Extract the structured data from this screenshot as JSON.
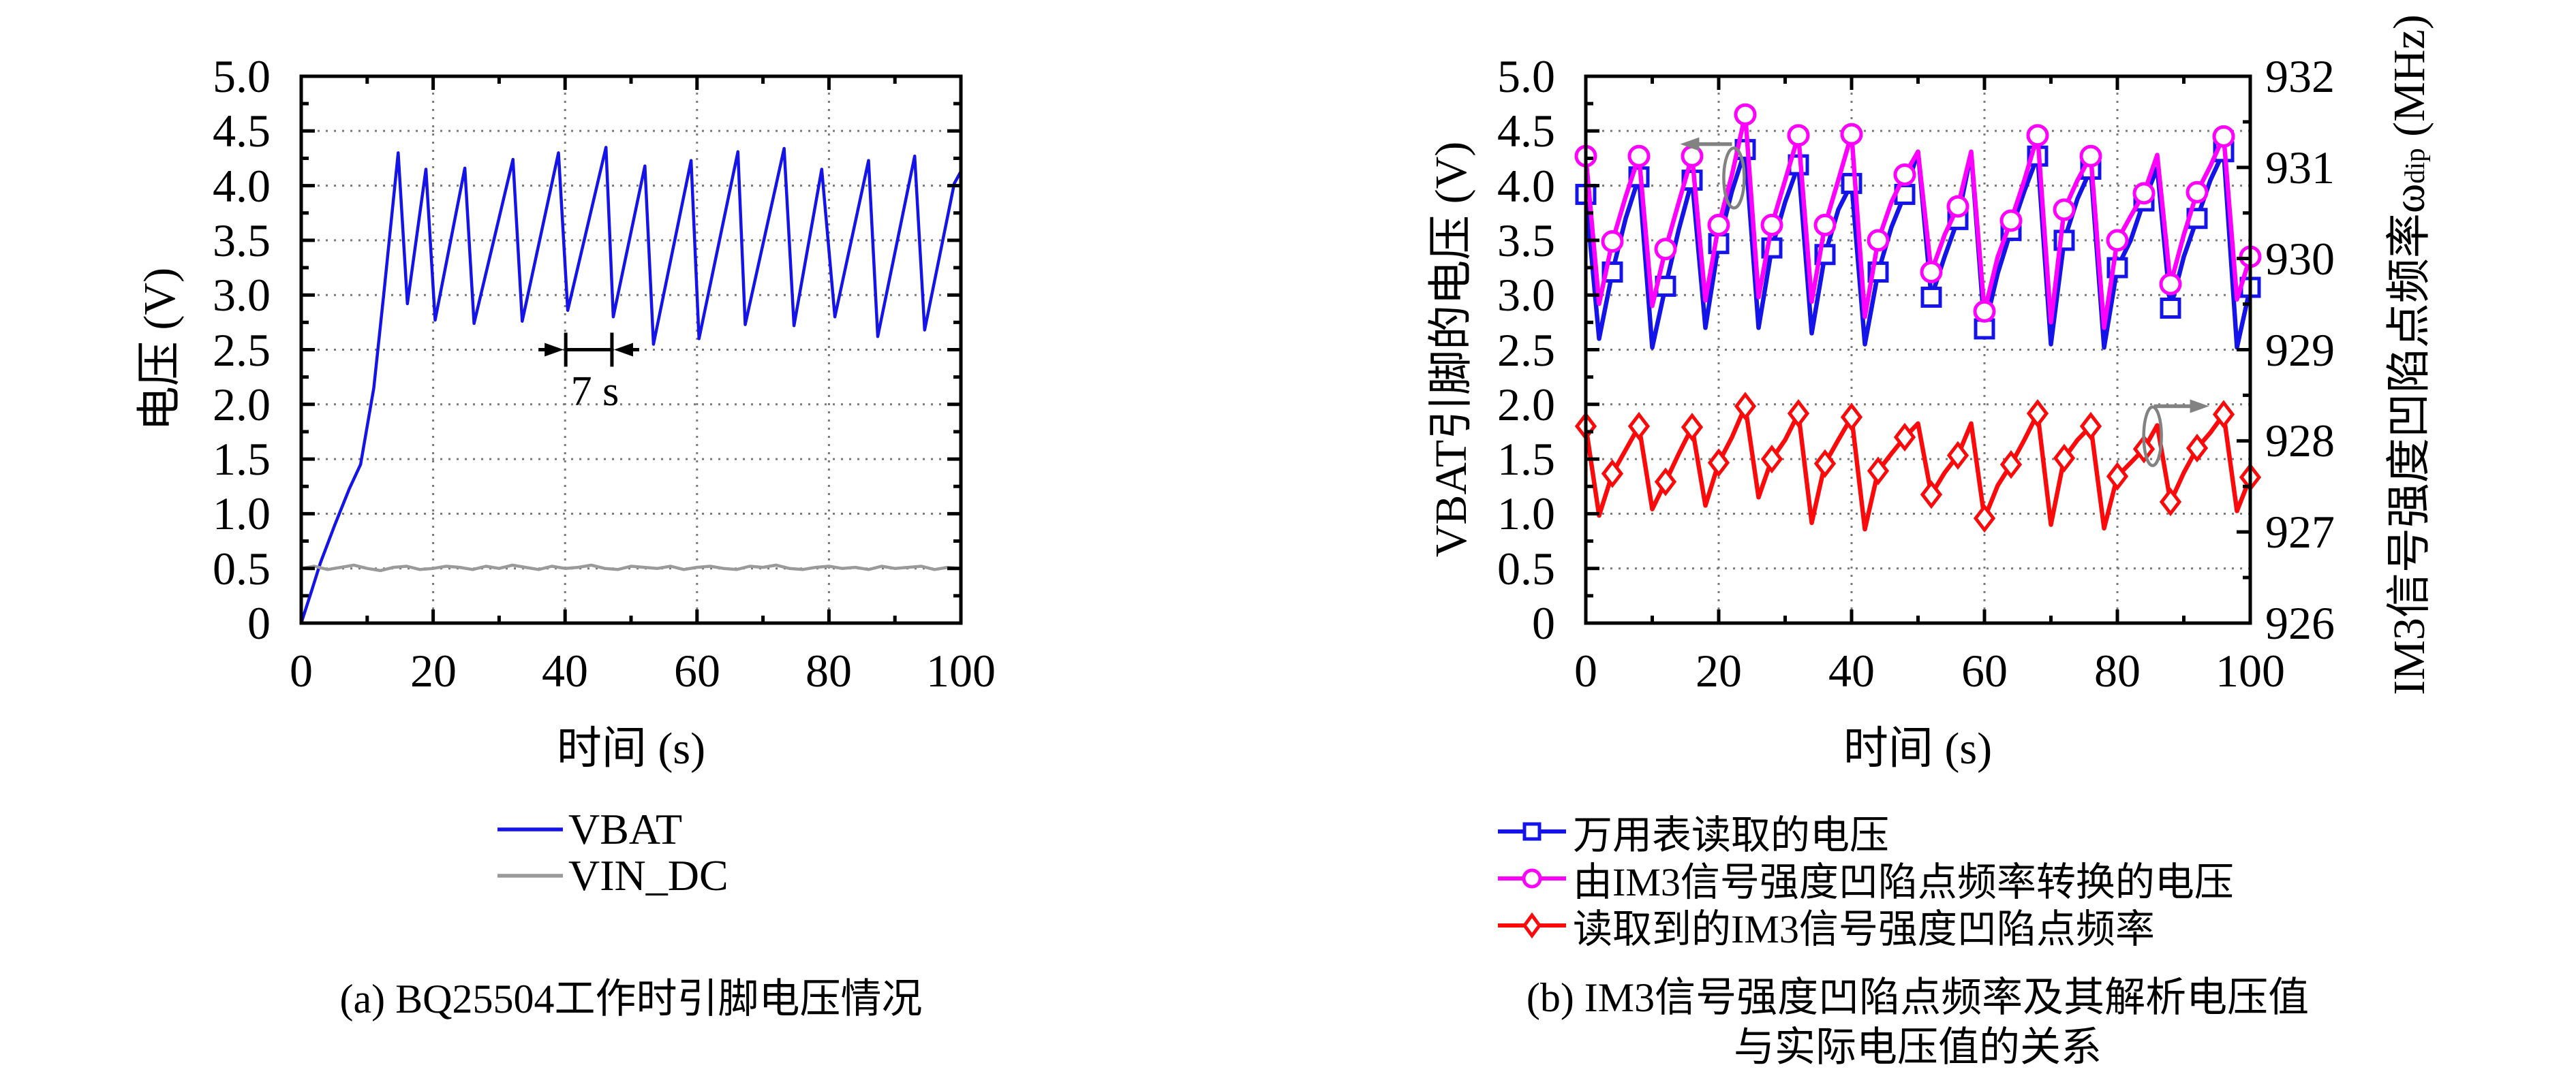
{
  "figure": {
    "background": "#ffffff"
  },
  "chart_data": [
    {
      "type": "line",
      "panel": "a",
      "caption": "(a) BQ25504工作时引脚电压情况",
      "xlabel": "时间 (s)",
      "ylabel": "电压 (V)",
      "xlim": [
        0,
        100
      ],
      "ylim": [
        0,
        5
      ],
      "x_major_step": 20,
      "x_minor_step": 10,
      "y_major_step": 0.5,
      "y_minor_step": 0.25,
      "grid": "dotted",
      "grid_color": "#7a7a7a",
      "legend_position": "below-center",
      "x_tick_labels": [
        "0",
        "20",
        "40",
        "60",
        "80",
        "100"
      ],
      "y_tick_labels": [
        "5.0",
        "4.5",
        "4.0",
        "3.5",
        "3.0",
        "2.5",
        "2.0",
        "1.5",
        "1.0",
        "0.5",
        "0"
      ],
      "series": [
        {
          "name": "VBAT",
          "color": "#1414E8",
          "width": 4.5,
          "marker": "none",
          "points": [
            [
              0,
              0
            ],
            [
              1.6,
              0.3
            ],
            [
              2.9,
              0.55
            ],
            [
              5.1,
              0.9
            ],
            [
              7.3,
              1.23
            ],
            [
              9,
              1.45
            ],
            [
              11,
              2.15
            ],
            [
              12.5,
              3.0
            ],
            [
              14.7,
              4.3
            ],
            [
              16.1,
              2.92
            ],
            [
              18.9,
              4.15
            ],
            [
              20.3,
              2.77
            ],
            [
              24.8,
              4.16
            ],
            [
              26.2,
              2.74
            ],
            [
              32.1,
              4.24
            ],
            [
              33.5,
              2.76
            ],
            [
              39,
              4.3
            ],
            [
              40.4,
              2.86
            ],
            [
              46.2,
              4.35
            ],
            [
              47.3,
              2.8
            ],
            [
              52.1,
              4.18
            ],
            [
              53.4,
              2.55
            ],
            [
              59.1,
              4.23
            ],
            [
              60.3,
              2.6
            ],
            [
              66.2,
              4.31
            ],
            [
              67.3,
              2.73
            ],
            [
              73.2,
              4.34
            ],
            [
              74.7,
              2.72
            ],
            [
              78.9,
              4.15
            ],
            [
              80.9,
              2.8
            ],
            [
              86,
              4.23
            ],
            [
              87.4,
              2.62
            ],
            [
              93,
              4.27
            ],
            [
              94.5,
              2.68
            ],
            [
              99,
              4.02
            ],
            [
              100,
              4.13
            ]
          ]
        },
        {
          "name": "VIN_DC",
          "color": "#9A9A9A",
          "width": 4.5,
          "marker": "none",
          "points": [
            [
              0,
              0.5
            ],
            [
              2,
              0.52
            ],
            [
              4,
              0.49
            ],
            [
              6,
              0.51
            ],
            [
              8,
              0.53
            ],
            [
              10,
              0.5
            ],
            [
              12,
              0.48
            ],
            [
              14,
              0.51
            ],
            [
              16,
              0.52
            ],
            [
              18,
              0.49
            ],
            [
              20,
              0.5
            ],
            [
              22,
              0.52
            ],
            [
              24,
              0.51
            ],
            [
              26,
              0.49
            ],
            [
              28,
              0.52
            ],
            [
              30,
              0.5
            ],
            [
              32,
              0.53
            ],
            [
              34,
              0.51
            ],
            [
              36,
              0.49
            ],
            [
              38,
              0.52
            ],
            [
              40,
              0.5
            ],
            [
              42,
              0.51
            ],
            [
              44,
              0.53
            ],
            [
              46,
              0.5
            ],
            [
              48,
              0.49
            ],
            [
              50,
              0.52
            ],
            [
              52,
              0.51
            ],
            [
              54,
              0.5
            ],
            [
              56,
              0.52
            ],
            [
              58,
              0.49
            ],
            [
              60,
              0.51
            ],
            [
              62,
              0.52
            ],
            [
              64,
              0.5
            ],
            [
              66,
              0.49
            ],
            [
              68,
              0.52
            ],
            [
              70,
              0.51
            ],
            [
              72,
              0.53
            ],
            [
              74,
              0.5
            ],
            [
              76,
              0.49
            ],
            [
              78,
              0.51
            ],
            [
              80,
              0.52
            ],
            [
              82,
              0.5
            ],
            [
              84,
              0.51
            ],
            [
              86,
              0.49
            ],
            [
              88,
              0.52
            ],
            [
              90,
              0.5
            ],
            [
              92,
              0.51
            ],
            [
              94,
              0.52
            ],
            [
              96,
              0.49
            ],
            [
              98,
              0.51
            ],
            [
              100,
              0.5
            ]
          ]
        }
      ],
      "annotation": {
        "label": "7 s",
        "span_t": [
          40.1,
          47.1
        ],
        "v": 2.5,
        "label_t": 44.3,
        "label_v": 2.13,
        "color": "#000000"
      }
    },
    {
      "type": "line",
      "panel": "b",
      "caption_line1": "(b) IM3信号强度凹陷点频率及其解析电压值",
      "caption_line2": "与实际电压值的关系",
      "xlabel": "时间 (s)",
      "ylabel_left": "VBAT引脚的电压 (V)",
      "ylabel_right": {
        "pre": "IM3信号强度凹陷点频率ω",
        "sub": "dip",
        "post": " (MHz)"
      },
      "xlim": [
        0,
        100
      ],
      "ylim_left": [
        0,
        5
      ],
      "ylim_right": [
        926,
        932
      ],
      "x_major_step": 20,
      "x_minor_step": 10,
      "y_left_major_step": 0.5,
      "y_left_minor_step": 0.25,
      "y_right_major_step": 1,
      "y_right_minor_step": 0.5,
      "grid": "dotted",
      "grid_color": "#7a7a7a",
      "legend_position": "below-left",
      "x_tick_labels": [
        "0",
        "20",
        "40",
        "60",
        "80",
        "100"
      ],
      "y_tick_labels_left": [
        "5.0",
        "4.5",
        "4.0",
        "3.5",
        "3.0",
        "2.5",
        "2.0",
        "1.5",
        "1.0",
        "0.5",
        "0"
      ],
      "y_tick_labels_right": [
        "932",
        "931",
        "930",
        "929",
        "928",
        "927",
        "926"
      ],
      "marker_every": 2,
      "x": [
        0,
        2,
        4,
        6,
        8,
        10,
        12,
        14,
        16,
        18,
        20,
        22,
        24,
        26,
        28,
        30,
        32,
        34,
        36,
        38,
        40,
        42,
        44,
        46,
        48,
        50,
        52,
        54,
        56,
        58,
        60,
        62,
        64,
        66,
        68,
        70,
        72,
        74,
        76,
        78,
        80,
        82,
        84,
        86,
        88,
        90,
        92,
        94,
        96,
        98,
        100
      ],
      "series": [
        {
          "name": "万用表读取的电压",
          "axis": "left",
          "color": "#1414E8",
          "width": 6.5,
          "marker": "square",
          "values": [
            3.92,
            2.6,
            3.21,
            3.7,
            4.08,
            2.52,
            3.08,
            3.6,
            4.05,
            2.7,
            3.47,
            3.95,
            4.33,
            2.7,
            3.43,
            3.85,
            4.19,
            2.65,
            3.37,
            3.78,
            4.02,
            2.55,
            3.21,
            3.62,
            3.92,
            4.31,
            2.98,
            3.35,
            3.69,
            4.3,
            2.69,
            3.2,
            3.59,
            3.95,
            4.27,
            2.55,
            3.5,
            3.88,
            4.15,
            2.52,
            3.25,
            3.5,
            3.86,
            4.16,
            2.88,
            3.35,
            3.7,
            4.05,
            4.31,
            2.52,
            3.07
          ]
        },
        {
          "name": "由IM3信号强度凹陷点频率转换的电压",
          "axis": "left",
          "color": "#FF00FF",
          "width": 6.5,
          "marker": "circle",
          "values": [
            4.27,
            2.92,
            3.49,
            3.9,
            4.27,
            2.9,
            3.42,
            3.85,
            4.27,
            2.95,
            3.64,
            4.1,
            4.65,
            2.98,
            3.64,
            4.05,
            4.46,
            2.94,
            3.64,
            4.05,
            4.47,
            2.8,
            3.5,
            3.85,
            4.1,
            4.31,
            3.21,
            3.55,
            3.81,
            4.31,
            2.85,
            3.35,
            3.68,
            4.05,
            4.46,
            2.75,
            3.78,
            4.05,
            4.27,
            2.7,
            3.5,
            3.72,
            3.93,
            4.28,
            3.1,
            3.55,
            3.94,
            4.18,
            4.45,
            2.96,
            3.35
          ]
        },
        {
          "name": "读取到的IM3信号强度凹陷点频率",
          "axis": "right",
          "color": "#FA0A0A",
          "width": 6.5,
          "marker": "diamond",
          "values": [
            928.16,
            927.18,
            927.64,
            927.9,
            928.16,
            927.25,
            927.55,
            927.86,
            928.15,
            927.29,
            927.76,
            928.04,
            928.38,
            927.38,
            927.8,
            928.01,
            928.3,
            927.1,
            927.75,
            928.01,
            928.26,
            927.03,
            927.67,
            927.86,
            928.04,
            928.19,
            927.41,
            927.65,
            927.84,
            928.19,
            927.15,
            927.51,
            927.74,
            928.01,
            928.3,
            927.08,
            927.81,
            928.01,
            928.16,
            927.04,
            927.61,
            927.76,
            927.91,
            928.17,
            927.33,
            927.65,
            927.92,
            928.09,
            928.29,
            927.23,
            927.6
          ]
        }
      ],
      "annotations": {
        "color": "#828282",
        "voltage_group_ellipse": {
          "t": 22.3,
          "v": 4.07
        },
        "voltage_axis_arrow": {
          "from_t": 22.0,
          "to_t": 14.2,
          "v": 4.38
        },
        "frequency_group_ellipse": {
          "t": 85.3,
          "f": 928.05
        },
        "frequency_axis_arrow": {
          "from_t": 85.5,
          "to_t": 93.8,
          "f": 928.38
        }
      }
    }
  ]
}
